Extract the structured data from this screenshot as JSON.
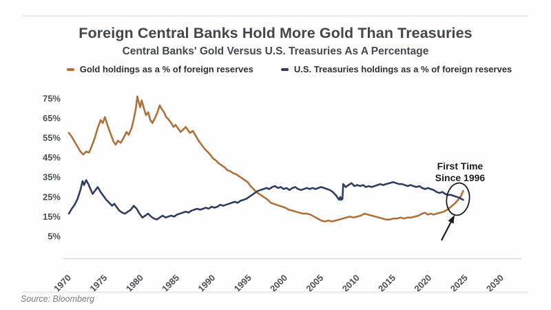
{
  "header": {
    "title": "Foreign Central Banks Hold More Gold Than Treasuries",
    "subtitle": "Central Banks' Gold Versus U.S. Treasuries As A Percentage"
  },
  "footer": {
    "source": "Source: Bloomberg"
  },
  "colors": {
    "gold_line": "#b0703a",
    "treasuries_line": "#2f3d5f",
    "title_text": "#43464a",
    "axis_text": "#4b4f54",
    "annotation": "#1b1c1e",
    "axis_line": "#d9d9d9",
    "background": "#fefefe"
  },
  "chart_data": {
    "type": "line",
    "title": "Foreign Central Banks Hold More Gold Than Treasuries",
    "subtitle": "Central Banks' Gold Versus U.S. Treasuries As A Percentage",
    "xlabel": "",
    "ylabel": "",
    "grid": false,
    "legend_position": "top",
    "x_ticks": [
      1970,
      1975,
      1980,
      1985,
      1990,
      1995,
      2000,
      2005,
      2010,
      2015,
      2020,
      2025,
      2030
    ],
    "y_ticks": [
      75,
      65,
      55,
      45,
      35,
      25,
      15,
      5
    ],
    "y_tick_suffix": "%",
    "x_range": [
      1969.2,
      2032.9
    ],
    "ylim": [
      0,
      80
    ],
    "annotation": {
      "text_lines": [
        "First Time",
        "Since 1996"
      ],
      "meaning": "Gold holdings cross above U.S. Treasuries holdings around 2024, first time since 1996"
    },
    "series": [
      {
        "name": "Gold holdings as a % of foreign reserves",
        "color": "#b0703a",
        "points": [
          [
            1970,
            57.5
          ],
          [
            1970.4,
            55.5
          ],
          [
            1970.8,
            53
          ],
          [
            1971.2,
            50.5
          ],
          [
            1971.6,
            48
          ],
          [
            1972,
            46.5
          ],
          [
            1972.4,
            48
          ],
          [
            1972.8,
            47.5
          ],
          [
            1973.2,
            51
          ],
          [
            1973.6,
            55
          ],
          [
            1974,
            60
          ],
          [
            1974.4,
            64
          ],
          [
            1974.7,
            62.5
          ],
          [
            1975,
            65.5
          ],
          [
            1975.4,
            61
          ],
          [
            1975.8,
            57
          ],
          [
            1976.2,
            53
          ],
          [
            1976.5,
            51.5
          ],
          [
            1976.8,
            53.5
          ],
          [
            1977.2,
            52.5
          ],
          [
            1977.6,
            55
          ],
          [
            1978,
            58
          ],
          [
            1978.3,
            56.5
          ],
          [
            1978.7,
            60
          ],
          [
            1979,
            64.5
          ],
          [
            1979.3,
            70
          ],
          [
            1979.5,
            76
          ],
          [
            1979.7,
            73
          ],
          [
            1979.9,
            70.5
          ],
          [
            1980.1,
            74
          ],
          [
            1980.4,
            70
          ],
          [
            1980.7,
            66.5
          ],
          [
            1981,
            68
          ],
          [
            1981.3,
            64
          ],
          [
            1981.6,
            62.5
          ],
          [
            1982,
            65.5
          ],
          [
            1982.3,
            68
          ],
          [
            1982.6,
            71.5
          ],
          [
            1982.9,
            69.5
          ],
          [
            1983.2,
            68
          ],
          [
            1983.5,
            65.5
          ],
          [
            1983.8,
            64.5
          ],
          [
            1984.2,
            62.5
          ],
          [
            1984.5,
            60.5
          ],
          [
            1984.8,
            61.5
          ],
          [
            1985.2,
            59.5
          ],
          [
            1985.5,
            58
          ],
          [
            1985.8,
            59
          ],
          [
            1986.2,
            60.5
          ],
          [
            1986.5,
            59
          ],
          [
            1986.8,
            57.5
          ],
          [
            1987.2,
            58.5
          ],
          [
            1987.6,
            56
          ],
          [
            1988,
            53.5
          ],
          [
            1988.4,
            51.5
          ],
          [
            1988.8,
            49.5
          ],
          [
            1989.2,
            48
          ],
          [
            1989.6,
            46.5
          ],
          [
            1990,
            44.5
          ],
          [
            1990.4,
            43.5
          ],
          [
            1990.8,
            42
          ],
          [
            1991.2,
            41
          ],
          [
            1991.6,
            40
          ],
          [
            1992,
            38.5
          ],
          [
            1992.4,
            38
          ],
          [
            1992.8,
            37
          ],
          [
            1993.2,
            36.5
          ],
          [
            1993.6,
            35.5
          ],
          [
            1994,
            34.5
          ],
          [
            1994.4,
            33.5
          ],
          [
            1994.8,
            32.5
          ],
          [
            1995.2,
            30.5
          ],
          [
            1995.6,
            29
          ],
          [
            1996,
            27.5
          ],
          [
            1996.4,
            26.5
          ],
          [
            1996.8,
            25.5
          ],
          [
            1997.2,
            24.5
          ],
          [
            1997.6,
            23.5
          ],
          [
            1998,
            22
          ],
          [
            1998.4,
            21.5
          ],
          [
            1998.8,
            21
          ],
          [
            1999.2,
            20.5
          ],
          [
            1999.6,
            20
          ],
          [
            2000,
            19.5
          ],
          [
            2000.5,
            18.5
          ],
          [
            2001,
            18
          ],
          [
            2001.5,
            17.5
          ],
          [
            2002,
            17
          ],
          [
            2002.5,
            16.5
          ],
          [
            2003,
            16.5
          ],
          [
            2003.5,
            16
          ],
          [
            2004,
            15
          ],
          [
            2004.5,
            14
          ],
          [
            2005,
            13
          ],
          [
            2005.5,
            12.5
          ],
          [
            2006,
            13
          ],
          [
            2006.5,
            12.5
          ],
          [
            2007,
            13
          ],
          [
            2007.5,
            13.5
          ],
          [
            2008,
            14
          ],
          [
            2008.5,
            14.5
          ],
          [
            2009,
            15
          ],
          [
            2009.5,
            14.5
          ],
          [
            2010,
            15
          ],
          [
            2010.5,
            15.5
          ],
          [
            2011,
            16.5
          ],
          [
            2011.5,
            16
          ],
          [
            2012,
            15.5
          ],
          [
            2012.5,
            15
          ],
          [
            2013,
            14.5
          ],
          [
            2013.5,
            14
          ],
          [
            2014,
            13.5
          ],
          [
            2014.5,
            13.5
          ],
          [
            2015,
            14
          ],
          [
            2015.5,
            14
          ],
          [
            2016,
            14.5
          ],
          [
            2016.5,
            14
          ],
          [
            2017,
            14.5
          ],
          [
            2017.5,
            14.5
          ],
          [
            2018,
            15
          ],
          [
            2018.5,
            15.5
          ],
          [
            2019,
            16.5
          ],
          [
            2019.4,
            17
          ],
          [
            2019.8,
            16
          ],
          [
            2020.2,
            16.5
          ],
          [
            2020.6,
            16
          ],
          [
            2021,
            16.5
          ],
          [
            2021.5,
            17
          ],
          [
            2022,
            17.5
          ],
          [
            2022.5,
            18.5
          ],
          [
            2023,
            20
          ],
          [
            2023.5,
            21.5
          ],
          [
            2024,
            23.5
          ],
          [
            2024.4,
            25.5
          ],
          [
            2024.7,
            28
          ]
        ]
      },
      {
        "name": "U.S. Treasuries holdings as a % of foreign reserves",
        "color": "#2f3d5f",
        "points": [
          [
            1970,
            16.5
          ],
          [
            1970.4,
            19
          ],
          [
            1970.8,
            21
          ],
          [
            1971.2,
            24
          ],
          [
            1971.6,
            28.5
          ],
          [
            1971.9,
            33
          ],
          [
            1972.1,
            31
          ],
          [
            1972.4,
            33.5
          ],
          [
            1972.7,
            31.5
          ],
          [
            1973,
            29
          ],
          [
            1973.3,
            26.5
          ],
          [
            1973.7,
            28.5
          ],
          [
            1974,
            30
          ],
          [
            1974.4,
            27.5
          ],
          [
            1974.8,
            25.5
          ],
          [
            1975.2,
            23.5
          ],
          [
            1975.6,
            22
          ],
          [
            1976,
            20.5
          ],
          [
            1976.3,
            21.5
          ],
          [
            1976.7,
            19.5
          ],
          [
            1977,
            18
          ],
          [
            1977.4,
            17
          ],
          [
            1977.8,
            16.5
          ],
          [
            1978.2,
            17.5
          ],
          [
            1978.6,
            18.5
          ],
          [
            1979,
            20.5
          ],
          [
            1979.4,
            19
          ],
          [
            1979.8,
            16.5
          ],
          [
            1980.2,
            14.5
          ],
          [
            1980.6,
            15.5
          ],
          [
            1981,
            16.5
          ],
          [
            1981.4,
            15
          ],
          [
            1981.8,
            14
          ],
          [
            1982.2,
            13.5
          ],
          [
            1982.6,
            14.5
          ],
          [
            1983,
            15.5
          ],
          [
            1983.4,
            14.5
          ],
          [
            1983.8,
            15
          ],
          [
            1984.2,
            15.5
          ],
          [
            1984.6,
            15
          ],
          [
            1985,
            16
          ],
          [
            1985.4,
            16.5
          ],
          [
            1985.8,
            17
          ],
          [
            1986.2,
            17.5
          ],
          [
            1986.6,
            17
          ],
          [
            1987,
            18
          ],
          [
            1987.4,
            18.5
          ],
          [
            1987.8,
            19
          ],
          [
            1988.2,
            18.5
          ],
          [
            1988.6,
            19
          ],
          [
            1989,
            19.5
          ],
          [
            1989.4,
            19
          ],
          [
            1989.8,
            20
          ],
          [
            1990.2,
            19.5
          ],
          [
            1990.6,
            20
          ],
          [
            1991,
            21
          ],
          [
            1991.4,
            20.5
          ],
          [
            1991.8,
            21
          ],
          [
            1992.2,
            21.5
          ],
          [
            1992.6,
            22
          ],
          [
            1993,
            22.5
          ],
          [
            1993.4,
            22
          ],
          [
            1993.8,
            23
          ],
          [
            1994.2,
            23.5
          ],
          [
            1994.6,
            24
          ],
          [
            1995,
            25
          ],
          [
            1995.4,
            26
          ],
          [
            1995.8,
            27
          ],
          [
            1996.2,
            28
          ],
          [
            1996.6,
            28.5
          ],
          [
            1997,
            29
          ],
          [
            1997.4,
            29.5
          ],
          [
            1997.8,
            29
          ],
          [
            1998.2,
            30
          ],
          [
            1998.6,
            30.5
          ],
          [
            1999,
            29.5
          ],
          [
            1999.4,
            30
          ],
          [
            1999.8,
            29
          ],
          [
            2000.2,
            29.5
          ],
          [
            2000.6,
            28.5
          ],
          [
            2001,
            29.5
          ],
          [
            2001.4,
            30
          ],
          [
            2001.8,
            29
          ],
          [
            2002.2,
            28.5
          ],
          [
            2002.6,
            29
          ],
          [
            2003,
            29.5
          ],
          [
            2003.4,
            29
          ],
          [
            2003.8,
            29.5
          ],
          [
            2004.2,
            29
          ],
          [
            2004.6,
            29.5
          ],
          [
            2005,
            30
          ],
          [
            2005.4,
            29.5
          ],
          [
            2005.8,
            29
          ],
          [
            2006.2,
            28.5
          ],
          [
            2006.6,
            27.5
          ],
          [
            2007,
            26
          ],
          [
            2007.3,
            24.5
          ],
          [
            2007.5,
            23.5
          ],
          [
            2007.65,
            25
          ],
          [
            2007.8,
            23.5
          ],
          [
            2007.95,
            24
          ],
          [
            2008.05,
            31.5
          ],
          [
            2008.4,
            30
          ],
          [
            2008.8,
            31
          ],
          [
            2009.2,
            32
          ],
          [
            2009.6,
            30.5
          ],
          [
            2010,
            31
          ],
          [
            2010.4,
            30.5
          ],
          [
            2010.8,
            31
          ],
          [
            2011.2,
            30
          ],
          [
            2011.6,
            30.5
          ],
          [
            2012,
            30
          ],
          [
            2012.4,
            30.5
          ],
          [
            2012.8,
            31
          ],
          [
            2013.2,
            31.5
          ],
          [
            2013.6,
            31
          ],
          [
            2014,
            31.5
          ],
          [
            2014.5,
            32
          ],
          [
            2015,
            32.5
          ],
          [
            2015.4,
            32
          ],
          [
            2015.8,
            31.5
          ],
          [
            2016.2,
            31.5
          ],
          [
            2016.6,
            31
          ],
          [
            2017,
            30.5
          ],
          [
            2017.4,
            31
          ],
          [
            2017.8,
            30.5
          ],
          [
            2018.2,
            30
          ],
          [
            2018.6,
            30.5
          ],
          [
            2019,
            29.5
          ],
          [
            2019.4,
            29
          ],
          [
            2019.8,
            29.5
          ],
          [
            2020.2,
            29
          ],
          [
            2020.6,
            28.5
          ],
          [
            2021,
            27.5
          ],
          [
            2021.4,
            27
          ],
          [
            2021.8,
            27.5
          ],
          [
            2022.2,
            26.5
          ],
          [
            2022.6,
            26
          ],
          [
            2023,
            26
          ],
          [
            2023.4,
            25.5
          ],
          [
            2023.8,
            25
          ],
          [
            2024.2,
            24.5
          ],
          [
            2024.7,
            23.5
          ]
        ]
      }
    ]
  }
}
